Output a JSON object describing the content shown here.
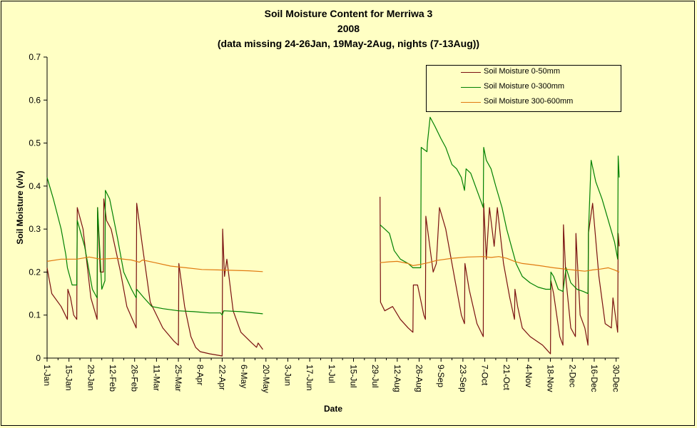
{
  "chart_data": {
    "type": "line",
    "title": "Soil Moisture Content for Merriwa 3",
    "subtitle_year": "2008",
    "subtitle_note": "(data missing 24-26Jan, 19May-2Aug, nights (7-13Aug))",
    "xlabel": "Date",
    "ylabel": "Soil Moisture (v/v)",
    "ylim": [
      0,
      0.7
    ],
    "y_ticks": [
      "0",
      "0.1",
      "0.2",
      "0.3",
      "0.4",
      "0.5",
      "0.6",
      "0.7"
    ],
    "x_ticks": [
      "1-Jan",
      "15-Jan",
      "29-Jan",
      "12-Feb",
      "26-Feb",
      "11-Mar",
      "25-Mar",
      "8-Apr",
      "22-Apr",
      "6-May",
      "20-May",
      "3-Jun",
      "17-Jun",
      "1-Jul",
      "15-Jul",
      "29-Jul",
      "12-Aug",
      "26-Aug",
      "9-Sep",
      "23-Sep",
      "7-Oct",
      "21-Oct",
      "4-Nov",
      "18-Nov",
      "2-Dec",
      "16-Dec",
      "30-Dec"
    ],
    "grid": false,
    "legend_position": "top-right",
    "series": [
      {
        "name": "Soil Moisture 0-50mm",
        "color": "#7a1010",
        "segments": [
          [
            [
              1,
              0.21
            ],
            [
              4,
              0.15
            ],
            [
              10,
              0.12
            ],
            [
              14,
              0.09
            ],
            [
              14.3,
              0.16
            ],
            [
              16,
              0.14
            ],
            [
              18,
              0.1
            ],
            [
              20,
              0.09
            ],
            [
              20.3,
              0.35
            ],
            [
              24,
              0.3
            ],
            [
              29,
              0.14
            ],
            [
              33,
              0.09
            ],
            [
              33.3,
              0.35
            ],
            [
              35,
              0.2
            ],
            [
              37,
              0.2
            ],
            [
              37.3,
              0.37
            ],
            [
              39,
              0.32
            ],
            [
              42,
              0.3
            ],
            [
              48,
              0.2
            ],
            [
              52,
              0.12
            ],
            [
              58,
              0.07
            ],
            [
              58.3,
              0.36
            ],
            [
              62,
              0.26
            ],
            [
              67,
              0.13
            ],
            [
              75,
              0.07
            ],
            [
              82,
              0.04
            ],
            [
              85,
              0.03
            ],
            [
              85.3,
              0.22
            ],
            [
              89,
              0.12
            ],
            [
              93,
              0.05
            ],
            [
              96,
              0.025
            ],
            [
              99,
              0.015
            ],
            [
              105,
              0.01
            ],
            [
              113,
              0.005
            ],
            [
              113.3,
              0.3
            ],
            [
              114.5,
              0.19
            ],
            [
              116,
              0.23
            ],
            [
              120,
              0.11
            ],
            [
              125,
              0.06
            ],
            [
              132,
              0.035
            ],
            [
              135,
              0.025
            ],
            [
              136,
              0.035
            ],
            [
              139,
              0.02
            ]
          ],
          [
            [
              214,
              0.375
            ],
            [
              214.3,
              0.13
            ],
            [
              217,
              0.11
            ],
            [
              222,
              0.12
            ],
            [
              227,
              0.09
            ],
            [
              232,
              0.07
            ],
            [
              235,
              0.06
            ],
            [
              235.3,
              0.17
            ],
            [
              238,
              0.17
            ],
            [
              242,
              0.1
            ],
            [
              243,
              0.09
            ],
            [
              243.3,
              0.33
            ],
            [
              248,
              0.2
            ],
            [
              250,
              0.22
            ],
            [
              252,
              0.35
            ],
            [
              256,
              0.3
            ],
            [
              262,
              0.18
            ],
            [
              266,
              0.1
            ],
            [
              268,
              0.08
            ],
            [
              268.3,
              0.22
            ],
            [
              271,
              0.16
            ],
            [
              276,
              0.08
            ],
            [
              280,
              0.05
            ],
            [
              280.3,
              0.36
            ],
            [
              282,
              0.23
            ],
            [
              284,
              0.35
            ],
            [
              287,
              0.26
            ],
            [
              289,
              0.35
            ],
            [
              293,
              0.22
            ],
            [
              297,
              0.14
            ],
            [
              300,
              0.09
            ],
            [
              300.3,
              0.16
            ],
            [
              302,
              0.12
            ],
            [
              305,
              0.07
            ],
            [
              310,
              0.05
            ],
            [
              318,
              0.03
            ],
            [
              323,
              0.01
            ],
            [
              323.3,
              0.18
            ],
            [
              325,
              0.15
            ],
            [
              329,
              0.05
            ],
            [
              331,
              0.03
            ],
            [
              331.3,
              0.31
            ],
            [
              333,
              0.18
            ],
            [
              336,
              0.07
            ],
            [
              339,
              0.05
            ],
            [
              339.3,
              0.29
            ],
            [
              342,
              0.1
            ],
            [
              345,
              0.07
            ],
            [
              347,
              0.03
            ],
            [
              347.3,
              0.29
            ],
            [
              350,
              0.36
            ],
            [
              354,
              0.19
            ],
            [
              358,
              0.08
            ],
            [
              362,
              0.07
            ],
            [
              363,
              0.14
            ],
            [
              366,
              0.06
            ],
            [
              366.3,
              0.29
            ],
            [
              367,
              0.26
            ]
          ]
        ]
      },
      {
        "name": "Soil Moisture 0-300mm",
        "color": "#008000",
        "segments": [
          [
            [
              1,
              0.42
            ],
            [
              5,
              0.37
            ],
            [
              10,
              0.3
            ],
            [
              13,
              0.24
            ],
            [
              14,
              0.21
            ],
            [
              17,
              0.17
            ],
            [
              20,
              0.17
            ],
            [
              20.3,
              0.32
            ],
            [
              25,
              0.26
            ],
            [
              30,
              0.16
            ],
            [
              33,
              0.14
            ],
            [
              33.3,
              0.35
            ],
            [
              36,
              0.16
            ],
            [
              38,
              0.18
            ],
            [
              38.3,
              0.39
            ],
            [
              41,
              0.37
            ],
            [
              46,
              0.28
            ],
            [
              50,
              0.2
            ],
            [
              55,
              0.16
            ],
            [
              58,
              0.14
            ],
            [
              58.3,
              0.16
            ],
            [
              63,
              0.14
            ],
            [
              68,
              0.12
            ],
            [
              75,
              0.115
            ],
            [
              85,
              0.11
            ],
            [
              95,
              0.108
            ],
            [
              105,
              0.105
            ],
            [
              112,
              0.105
            ],
            [
              113,
              0.1
            ],
            [
              114,
              0.11
            ],
            [
              125,
              0.108
            ],
            [
              139,
              0.103
            ]
          ],
          [
            [
              214,
              0.31
            ],
            [
              217,
              0.3
            ],
            [
              220,
              0.29
            ],
            [
              223,
              0.25
            ],
            [
              227,
              0.23
            ],
            [
              232,
              0.22
            ],
            [
              235,
              0.21
            ],
            [
              240,
              0.21
            ],
            [
              240.3,
              0.49
            ],
            [
              244,
              0.48
            ],
            [
              244.3,
              0.5
            ],
            [
              246,
              0.56
            ],
            [
              249,
              0.54
            ],
            [
              253,
              0.51
            ],
            [
              256,
              0.49
            ],
            [
              260,
              0.45
            ],
            [
              263,
              0.44
            ],
            [
              266,
              0.42
            ],
            [
              268,
              0.39
            ],
            [
              269,
              0.44
            ],
            [
              272,
              0.43
            ],
            [
              275,
              0.4
            ],
            [
              278,
              0.37
            ],
            [
              280,
              0.35
            ],
            [
              280.3,
              0.49
            ],
            [
              282,
              0.46
            ],
            [
              285,
              0.44
            ],
            [
              288,
              0.4
            ],
            [
              292,
              0.35
            ],
            [
              295,
              0.3
            ],
            [
              298,
              0.26
            ],
            [
              301,
              0.22
            ],
            [
              305,
              0.19
            ],
            [
              310,
              0.175
            ],
            [
              315,
              0.165
            ],
            [
              320,
              0.16
            ],
            [
              323,
              0.16
            ],
            [
              323.3,
              0.2
            ],
            [
              325,
              0.19
            ],
            [
              328,
              0.16
            ],
            [
              331,
              0.155
            ],
            [
              333,
              0.21
            ],
            [
              336,
              0.175
            ],
            [
              340,
              0.16
            ],
            [
              344,
              0.155
            ],
            [
              347,
              0.15
            ],
            [
              347.3,
              0.29
            ],
            [
              349,
              0.46
            ],
            [
              352,
              0.41
            ],
            [
              356,
              0.37
            ],
            [
              360,
              0.32
            ],
            [
              364,
              0.27
            ],
            [
              366,
              0.23
            ],
            [
              366.3,
              0.47
            ],
            [
              367,
              0.42
            ]
          ]
        ]
      },
      {
        "name": "Soil Moisture 300-600mm",
        "color": "#e07a10",
        "segments": [
          [
            [
              1,
              0.225
            ],
            [
              10,
              0.23
            ],
            [
              20,
              0.23
            ],
            [
              28,
              0.235
            ],
            [
              35,
              0.23
            ],
            [
              45,
              0.232
            ],
            [
              55,
              0.228
            ],
            [
              60,
              0.223
            ],
            [
              62,
              0.228
            ],
            [
              70,
              0.222
            ],
            [
              80,
              0.214
            ],
            [
              90,
              0.21
            ],
            [
              100,
              0.206
            ],
            [
              110,
              0.205
            ],
            [
              120,
              0.204
            ],
            [
              130,
              0.203
            ],
            [
              139,
              0.201
            ]
          ],
          [
            [
              214,
              0.222
            ],
            [
              220,
              0.224
            ],
            [
              225,
              0.225
            ],
            [
              232,
              0.22
            ],
            [
              235,
              0.215
            ],
            [
              240,
              0.218
            ],
            [
              245,
              0.222
            ],
            [
              250,
              0.227
            ],
            [
              260,
              0.232
            ],
            [
              270,
              0.235
            ],
            [
              280,
              0.236
            ],
            [
              285,
              0.234
            ],
            [
              290,
              0.236
            ],
            [
              295,
              0.232
            ],
            [
              300,
              0.225
            ],
            [
              305,
              0.22
            ],
            [
              310,
              0.218
            ],
            [
              318,
              0.214
            ],
            [
              325,
              0.21
            ],
            [
              330,
              0.208
            ],
            [
              335,
              0.206
            ],
            [
              340,
              0.204
            ],
            [
              345,
              0.202
            ],
            [
              350,
              0.205
            ],
            [
              355,
              0.207
            ],
            [
              360,
              0.21
            ],
            [
              364,
              0.205
            ],
            [
              367,
              0.2
            ]
          ]
        ]
      }
    ]
  }
}
